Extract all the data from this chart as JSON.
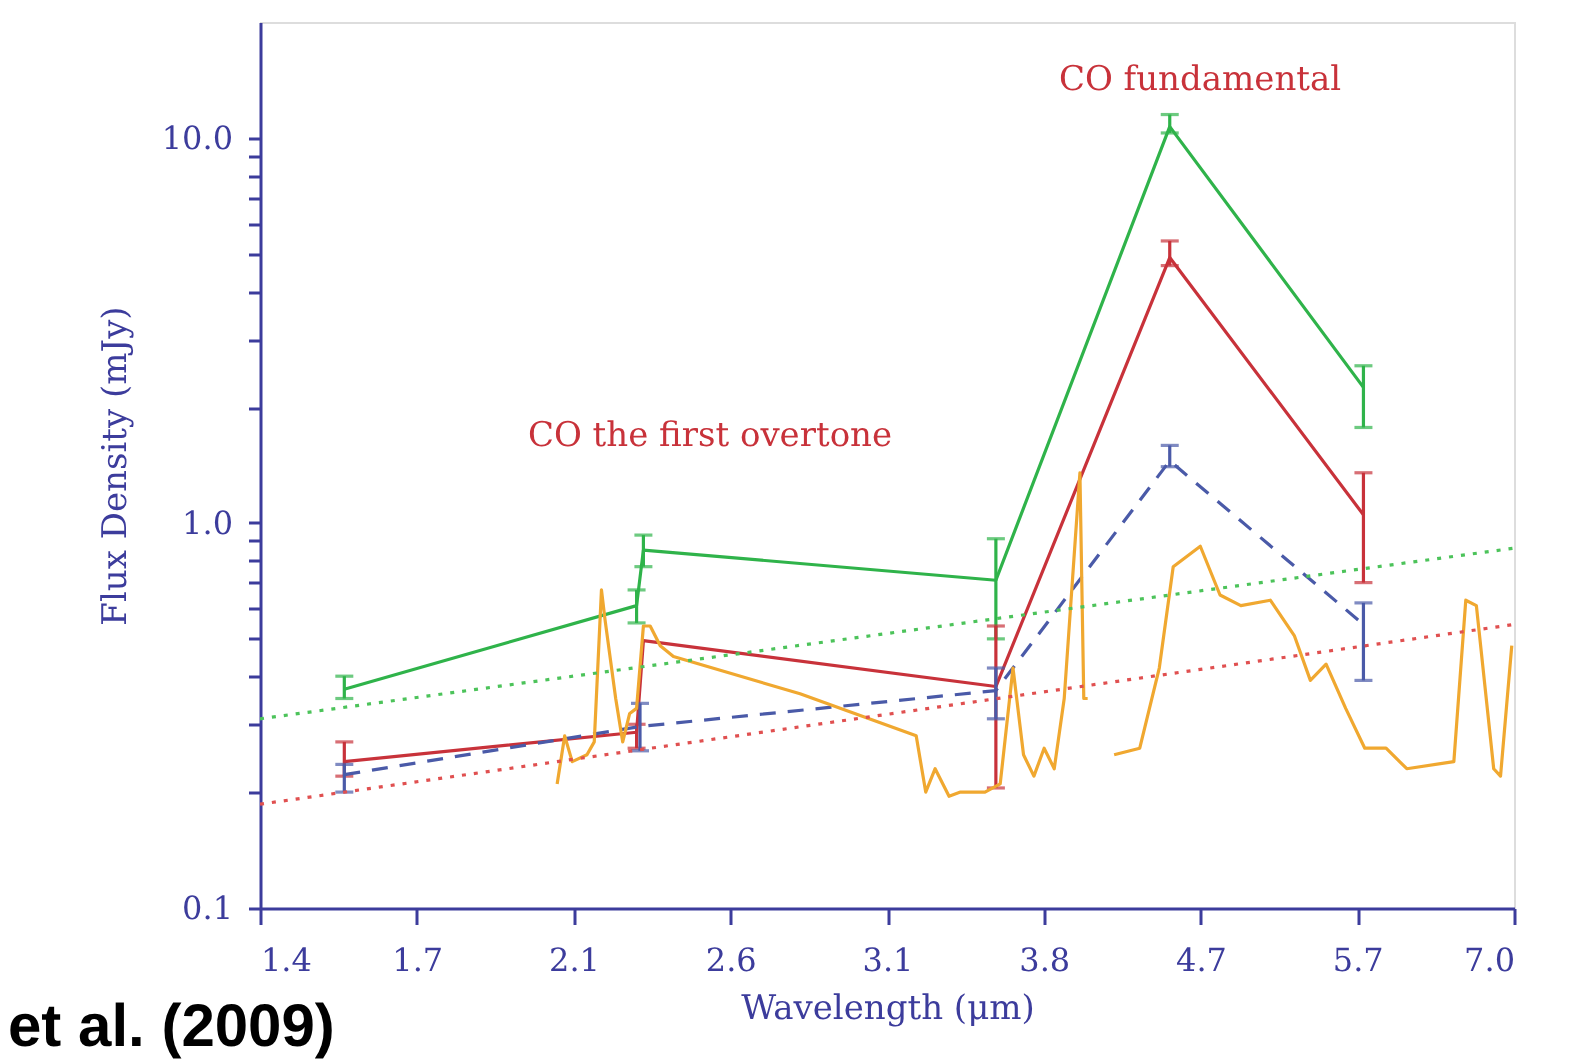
{
  "chart_data": {
    "type": "line",
    "xlabel": "Wavelength (μm)",
    "ylabel": "Flux Density (mJy)",
    "log": "xy",
    "xlim": [
      1.4,
      7.0
    ],
    "ylim": [
      0.1,
      20
    ],
    "xticks": [
      {
        "value": 1.4,
        "label": "1.4"
      },
      {
        "value": 1.712,
        "label": "1.7"
      },
      {
        "value": 2.0935,
        "label": "2.1"
      },
      {
        "value": 2.56,
        "label": "2.6"
      },
      {
        "value": 3.1305,
        "label": "3.1"
      },
      {
        "value": 3.8281,
        "label": "3.8"
      },
      {
        "value": 4.6811,
        "label": "4.7"
      },
      {
        "value": 5.7242,
        "label": "5.7"
      },
      {
        "value": 7.0,
        "label": "7.0"
      }
    ],
    "yticks": [
      {
        "value": 0.1,
        "label": "0.1"
      },
      {
        "value": 0.2,
        "label": null
      },
      {
        "value": 0.3,
        "label": null
      },
      {
        "value": 0.4,
        "label": null
      },
      {
        "value": 0.5,
        "label": null
      },
      {
        "value": 0.6,
        "label": null
      },
      {
        "value": 0.7,
        "label": null
      },
      {
        "value": 0.8,
        "label": null
      },
      {
        "value": 0.9,
        "label": null
      },
      {
        "value": 1,
        "label": "1.0"
      },
      {
        "value": 2,
        "label": null
      },
      {
        "value": 3,
        "label": null
      },
      {
        "value": 4,
        "label": null
      },
      {
        "value": 5,
        "label": null
      },
      {
        "value": 6,
        "label": null
      },
      {
        "value": 7,
        "label": null
      },
      {
        "value": 8,
        "label": null
      },
      {
        "value": 9,
        "label": null
      },
      {
        "value": 10,
        "label": "10.0"
      }
    ],
    "grid": false,
    "series": [
      {
        "color": "#2fb34a",
        "x": [
          1.56,
          2.27,
          2.29,
          3.6,
          4.5,
          5.77
        ],
        "values": [
          0.37,
          0.61,
          0.85,
          0.71,
          10.7,
          2.25
        ],
        "errors": [
          [
            0.35,
            0.4
          ],
          [
            0.55,
            0.67
          ],
          [
            0.77,
            0.93
          ],
          [
            0.5,
            0.91
          ],
          [
            10.3,
            11.5
          ],
          [
            1.77,
            2.56
          ]
        ]
      },
      {
        "color": "#c8323a",
        "x": [
          1.56,
          2.27,
          2.29,
          3.6,
          4.5,
          5.77
        ],
        "values": [
          0.24,
          0.286,
          0.495,
          0.376,
          4.89,
          1.05
        ],
        "errors": [
          [
            0.22,
            0.27
          ],
          [
            0.26,
            0.3
          ],
          null,
          [
            0.205,
            0.54
          ],
          [
            4.66,
            5.4
          ],
          [
            0.7,
            1.35
          ]
        ]
      },
      {
        "color": "#4a5aa8",
        "line_style": "dashed",
        "x": [
          1.56,
          2.28,
          3.6,
          4.5,
          5.77
        ],
        "values": [
          0.222,
          0.296,
          0.367,
          1.45,
          0.545
        ],
        "errors": [
          [
            0.2,
            0.236
          ],
          [
            0.256,
            0.34
          ],
          [
            0.31,
            0.42
          ],
          [
            1.4,
            1.59
          ],
          [
            0.39,
            0.62
          ]
        ]
      },
      {
        "color": "#f0a830",
        "x": [
          2.05,
          2.07,
          2.09,
          2.13,
          2.15,
          2.17,
          2.18,
          2.21,
          2.23,
          2.25,
          2.27,
          2.29,
          2.31,
          2.34,
          2.38,
          2.8,
          3.25,
          3.29,
          3.33,
          3.39,
          3.44,
          3.5,
          3.55,
          3.62,
          3.68,
          3.73,
          3.78,
          3.83,
          3.88,
          3.93,
          4.01,
          4.03,
          4.05,
          4.12,
          4.19,
          4.33,
          4.44,
          4.52,
          4.68,
          4.8,
          4.93,
          5.12,
          5.28,
          5.39,
          5.5,
          5.64,
          5.78,
          5.94,
          6.1,
          6.48,
          6.58,
          6.67,
          6.82,
          6.88,
          6.98
        ],
        "values": [
          0.21,
          0.28,
          0.24,
          0.25,
          0.27,
          0.67,
          0.56,
          0.35,
          0.27,
          0.32,
          0.33,
          0.54,
          0.54,
          0.48,
          0.45,
          0.36,
          0.28,
          0.2,
          0.23,
          0.195,
          0.2,
          0.2,
          0.2,
          0.21,
          0.42,
          0.25,
          0.22,
          0.26,
          0.23,
          0.35,
          1.35,
          0.35,
          0.35,
          null,
          0.25,
          0.26,
          0.42,
          0.77,
          0.87,
          0.65,
          0.61,
          0.63,
          0.51,
          0.39,
          0.43,
          0.33,
          0.26,
          0.26,
          0.23,
          0.24,
          0.63,
          0.61,
          0.23,
          0.22,
          0.48
        ]
      },
      {
        "color": "#4cc35a",
        "line_style": "dotted",
        "x": [
          1.4,
          7.0
        ],
        "values": [
          0.31,
          0.86
        ]
      },
      {
        "color": "#e05050",
        "line_style": "dotted",
        "x": [
          1.4,
          7.0
        ],
        "values": [
          0.186,
          0.545
        ]
      }
    ],
    "annotations": [
      "CO fundamental",
      "CO the first overtone",
      "et al. (2009)"
    ]
  }
}
